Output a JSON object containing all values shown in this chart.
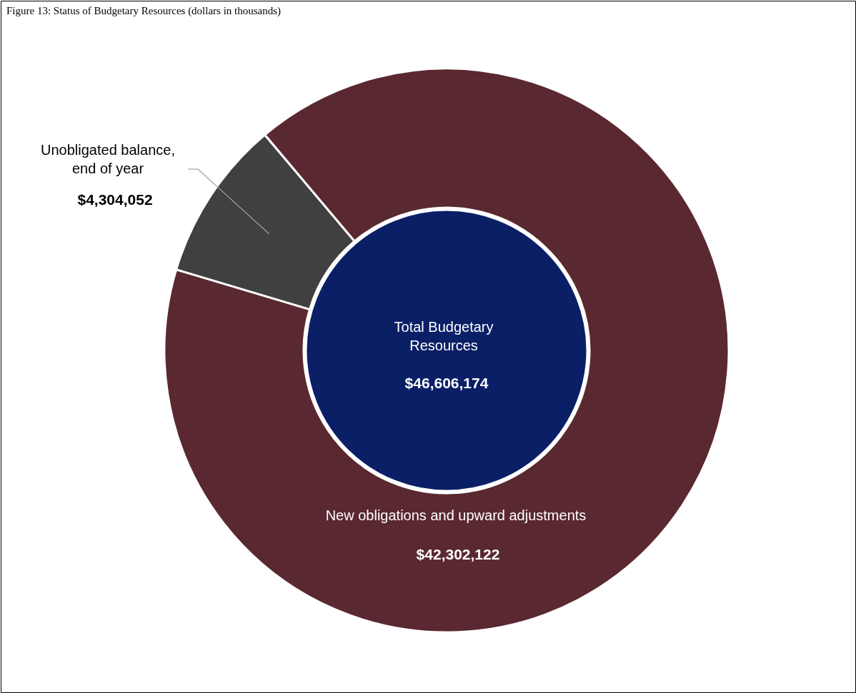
{
  "chart_data": {
    "type": "donut",
    "title": "Figure 13: Status of Budgetary Resources (dollars in thousands)",
    "categories": [
      "Unobligated balance, end of year",
      "New obligations and upward adjustments"
    ],
    "values": [
      4304052,
      42302122
    ],
    "colors": [
      "#404040",
      "#5a2830"
    ],
    "value_labels": [
      "$4,304,052",
      "$42,302,122"
    ],
    "annotations": [
      "Total Budgetary Resources",
      "$46,606,174"
    ]
  }
}
